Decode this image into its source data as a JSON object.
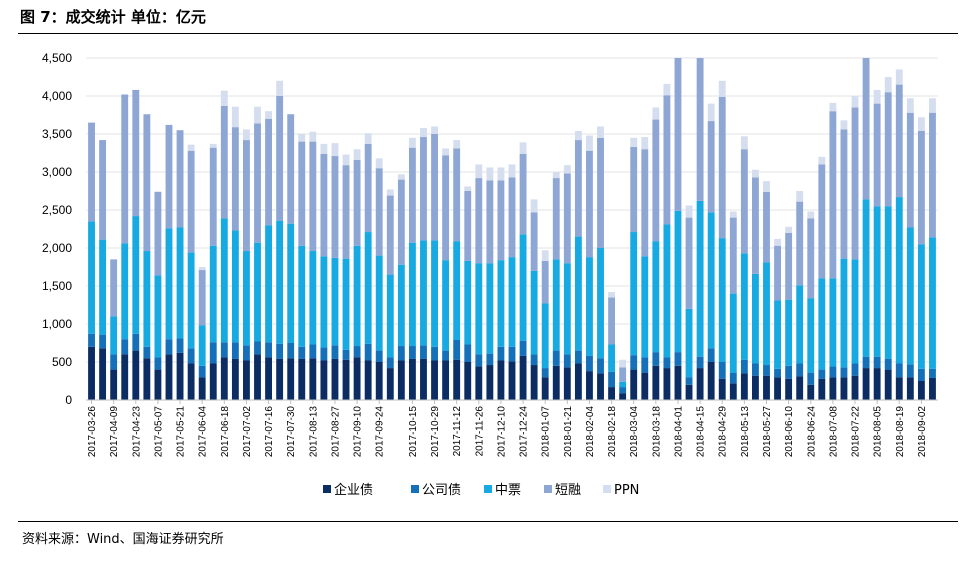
{
  "title": "图 7：成交统计 单位：亿元",
  "source": "资料来源：Wind、国海证券研究所",
  "colors": {
    "企业债": "#0b2d63",
    "公司债": "#1470b8",
    "中票": "#17a9e1",
    "短融": "#8ea6d4",
    "PPN": "#d4deee"
  },
  "chart_data": {
    "type": "bar",
    "stacked": true,
    "ylim": [
      0,
      4500
    ],
    "yticks": [
      "0",
      "500",
      "1,000",
      "1,500",
      "2,000",
      "2,500",
      "3,000",
      "3,500",
      "4,000",
      "4,500"
    ],
    "ytick_values": [
      0,
      500,
      1000,
      1500,
      2000,
      2500,
      3000,
      3500,
      4000,
      4500
    ],
    "legend_position": "bottom",
    "x": [
      "2017-03-26",
      "2017-04-02",
      "2017-04-09",
      "2017-04-16",
      "2017-04-23",
      "2017-04-30",
      "2017-05-07",
      "2017-05-14",
      "2017-05-21",
      "2017-05-28",
      "2017-06-04",
      "2017-06-11",
      "2017-06-18",
      "2017-06-25",
      "2017-07-02",
      "2017-07-09",
      "2017-07-16",
      "2017-07-23",
      "2017-07-30",
      "2017-08-06",
      "2017-08-13",
      "2017-08-20",
      "2017-08-27",
      "2017-09-03",
      "2017-09-10",
      "2017-09-17",
      "2017-09-24",
      "2017-10-01",
      "2017-10-08",
      "2017-10-15",
      "2017-10-22",
      "2017-10-29",
      "2017-11-05",
      "2017-11-12",
      "2017-11-19",
      "2017-11-26",
      "2017-12-03",
      "2017-12-10",
      "2017-12-17",
      "2017-12-24",
      "2017-12-31",
      "2018-01-07",
      "2018-01-14",
      "2018-01-21",
      "2018-01-28",
      "2018-02-04",
      "2018-02-11",
      "2018-02-18",
      "2018-02-25",
      "2018-03-04",
      "2018-03-11",
      "2018-03-18",
      "2018-03-25",
      "2018-04-01",
      "2018-04-08",
      "2018-04-15",
      "2018-04-22",
      "2018-04-29",
      "2018-05-06",
      "2018-05-13",
      "2018-05-20",
      "2018-05-27",
      "2018-06-03",
      "2018-06-10",
      "2018-06-17",
      "2018-06-24",
      "2018-07-01",
      "2018-07-08",
      "2018-07-15",
      "2018-07-22",
      "2018-07-29",
      "2018-08-05",
      "2018-08-12",
      "2018-08-19",
      "2018-08-26",
      "2018-09-02",
      "2018-09-09"
    ],
    "xtick_labels": [
      "2017-03-26",
      "2017-04-09",
      "2017-04-23",
      "2017-05-07",
      "2017-05-21",
      "2017-06-04",
      "2017-06-18",
      "2017-07-02",
      "2017-07-16",
      "2017-07-30",
      "2017-08-13",
      "2017-08-27",
      "2017-09-10",
      "2017-09-24",
      "2017-10-15",
      "2017-10-29",
      "2017-11-12",
      "2017-11-26",
      "2017-12-10",
      "2017-12-24",
      "2018-01-07",
      "2018-01-21",
      "2018-02-04",
      "2018-02-18",
      "2018-03-04",
      "2018-03-18",
      "2018-04-01",
      "2018-04-15",
      "2018-04-29",
      "2018-05-13",
      "2018-05-27",
      "2018-06-10",
      "2018-06-24",
      "2018-07-08",
      "2018-07-22",
      "2018-08-05",
      "2018-08-19",
      "2018-09-02"
    ],
    "series": [
      {
        "name": "企业债",
        "values": [
          700,
          680,
          400,
          600,
          650,
          550,
          400,
          600,
          620,
          480,
          300,
          480,
          560,
          540,
          520,
          600,
          560,
          540,
          550,
          540,
          550,
          520,
          540,
          530,
          560,
          520,
          500,
          420,
          520,
          540,
          540,
          520,
          520,
          530,
          500,
          440,
          460,
          520,
          510,
          580,
          460,
          300,
          450,
          430,
          480,
          380,
          350,
          170,
          90,
          400,
          360,
          450,
          420,
          450,
          200,
          420,
          500,
          280,
          220,
          350,
          320,
          320,
          300,
          280,
          310,
          200,
          280,
          300,
          300,
          320,
          420,
          420,
          400,
          300,
          300,
          250,
          290
        ]
      },
      {
        "name": "公司债",
        "values": [
          170,
          180,
          200,
          200,
          220,
          150,
          160,
          200,
          190,
          200,
          150,
          280,
          200,
          220,
          200,
          170,
          200,
          200,
          200,
          160,
          180,
          170,
          180,
          130,
          150,
          220,
          150,
          140,
          190,
          170,
          180,
          180,
          130,
          260,
          230,
          160,
          150,
          180,
          190,
          200,
          140,
          120,
          200,
          170,
          170,
          200,
          200,
          200,
          80,
          190,
          200,
          180,
          140,
          180,
          100,
          150,
          180,
          220,
          140,
          180,
          160,
          140,
          110,
          170,
          170,
          160,
          120,
          140,
          130,
          160,
          150,
          150,
          140,
          180,
          170,
          160,
          120
        ]
      },
      {
        "name": "中票",
        "values": [
          1480,
          1250,
          500,
          1260,
          1550,
          1260,
          1080,
          1460,
          1460,
          1260,
          530,
          1270,
          1630,
          1470,
          1240,
          1300,
          1540,
          1620,
          1570,
          1330,
          1230,
          1200,
          1150,
          1200,
          1320,
          1470,
          1250,
          1090,
          1070,
          1360,
          1380,
          1400,
          1190,
          1300,
          1100,
          1200,
          1190,
          1140,
          1180,
          1400,
          1100,
          850,
          1200,
          1200,
          1500,
          1300,
          1450,
          360,
          70,
          1620,
          1330,
          1460,
          1750,
          1860,
          900,
          2050,
          1790,
          1630,
          1040,
          1400,
          1180,
          1350,
          900,
          870,
          1030,
          980,
          1200,
          1160,
          1430,
          1370,
          2070,
          1980,
          2010,
          2190,
          1800,
          1640,
          1730
        ]
      },
      {
        "name": "短融",
        "values": [
          1300,
          1310,
          750,
          1960,
          1660,
          1800,
          1100,
          1360,
          1280,
          1340,
          730,
          1290,
          1480,
          1360,
          1460,
          1570,
          1400,
          1640,
          1440,
          1370,
          1440,
          1350,
          1340,
          1230,
          1130,
          1160,
          1150,
          1040,
          1120,
          1250,
          1360,
          1400,
          1380,
          1220,
          920,
          1120,
          1090,
          1050,
          1050,
          1060,
          770,
          560,
          1070,
          1180,
          1270,
          1400,
          1450,
          620,
          190,
          1120,
          1410,
          1600,
          1700,
          2010,
          1200,
          1880,
          1200,
          1860,
          1000,
          1370,
          1270,
          930,
          720,
          880,
          1100,
          1050,
          1500,
          2200,
          1700,
          2000,
          1860,
          1350,
          1500,
          1480,
          1510,
          1490,
          1640
        ]
      },
      {
        "name": "PPN",
        "values": [
          0,
          0,
          0,
          0,
          0,
          0,
          0,
          0,
          0,
          80,
          40,
          50,
          200,
          270,
          140,
          220,
          100,
          200,
          0,
          100,
          130,
          130,
          170,
          140,
          140,
          140,
          130,
          80,
          70,
          130,
          120,
          100,
          90,
          110,
          60,
          180,
          170,
          170,
          170,
          150,
          170,
          140,
          80,
          110,
          120,
          200,
          150,
          70,
          100,
          120,
          160,
          160,
          150,
          210,
          160,
          200,
          230,
          210,
          80,
          170,
          100,
          140,
          90,
          80,
          140,
          90,
          100,
          110,
          120,
          150,
          160,
          180,
          200,
          200,
          190,
          180,
          190
        ]
      }
    ]
  },
  "legend": [
    {
      "label": "企业债"
    },
    {
      "label": "公司债"
    },
    {
      "label": "中票"
    },
    {
      "label": "短融"
    },
    {
      "label": "PPN"
    }
  ]
}
